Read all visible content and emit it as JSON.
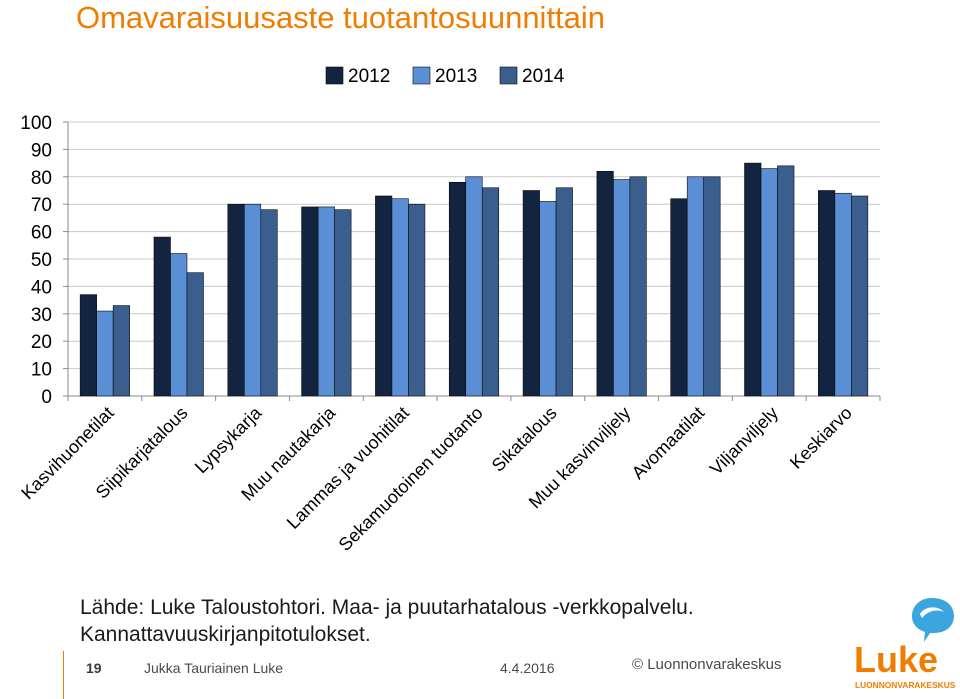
{
  "title": "Omavaraisuusaste tuotantosuunnittain",
  "source": {
    "line1": "Lähde: Luke Taloustohtori. Maa- ja puutarhatalous -verkkopalvelu.",
    "line2": "Kannattavuuskirjanpitotulokset."
  },
  "footer": {
    "page": "19",
    "author": "Jukka Tauriainen Luke",
    "date": "4.4.2016",
    "copyright": "© Luonnonvarakeskus"
  },
  "logo": {
    "text": "Luke",
    "subtext": "LUONNONVARAKESKUS",
    "colors": {
      "orange": "#f07d00",
      "blue": "#3aa6dd"
    }
  },
  "chart_data": {
    "type": "bar",
    "title": "Omavaraisuusaste tuotantosuunnittain",
    "categories": [
      "Kasvihuonetilat",
      "Siipikarjatalous",
      "Lypsykarja",
      "Muu nautakarja",
      "Lammas ja vuohitilat",
      "Sekamuotoinen tuotanto",
      "Sikatalous",
      "Muu kasvinviljely",
      "Avomaatilat",
      "Viljanviljely",
      "Keskiarvo"
    ],
    "series": [
      {
        "name": "2012",
        "color": "#12243f",
        "values": [
          37,
          58,
          70,
          69,
          73,
          78,
          75,
          82,
          72,
          85,
          75
        ]
      },
      {
        "name": "2013",
        "color": "#5a8fd6",
        "values": [
          31,
          52,
          70,
          69,
          72,
          80,
          71,
          79,
          80,
          83,
          74
        ]
      },
      {
        "name": "2014",
        "color": "#3a5f8f",
        "values": [
          33,
          45,
          68,
          68,
          70,
          76,
          76,
          80,
          80,
          84,
          73
        ]
      }
    ],
    "ylim": [
      0,
      100
    ],
    "yticks": [
      "0",
      "10",
      "20",
      "30",
      "40",
      "50",
      "60",
      "70",
      "80",
      "90",
      "100"
    ],
    "grid": true,
    "legend_position": "top-center"
  }
}
